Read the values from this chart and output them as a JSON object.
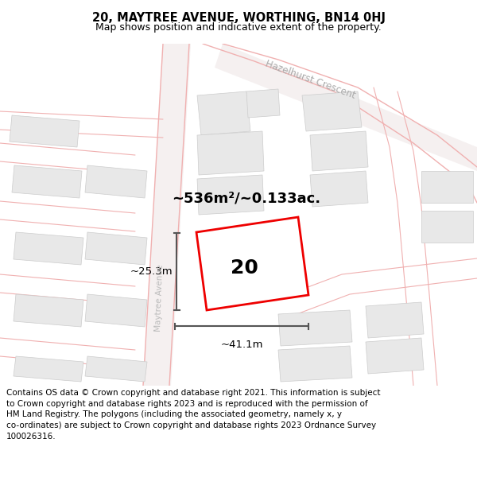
{
  "title": "20, MAYTREE AVENUE, WORTHING, BN14 0HJ",
  "subtitle": "Map shows position and indicative extent of the property.",
  "area_label": "~536m²/~0.133ac.",
  "number_label": "20",
  "dim_h": "~41.1m",
  "dim_v": "~25.3m",
  "road_label_diagonal": "Hazelhurst Crescent",
  "road_label_vertical": "Avenue",
  "footer": "Contains OS data © Crown copyright and database right 2021. This information is subject\nto Crown copyright and database rights 2023 and is reproduced with the permission of\nHM Land Registry. The polygons (including the associated geometry, namely x, y\nco-ordinates) are subject to Crown copyright and database rights 2023 Ordnance Survey\n100026316.",
  "map_bg": "#f8f8f8",
  "title_bg": "#ffffff",
  "footer_bg": "#ffffff",
  "building_fill": "#e8e8e8",
  "building_edge": "#cccccc",
  "road_line_color": "#f0b0b0",
  "road_area_color": "#f5e8e8",
  "property_color": "#ee0000",
  "property_fill": "#ffffff",
  "dim_color": "#555555",
  "text_color": "#000000",
  "road_text_color": "#bbbbbb",
  "haz_text_color": "#aaaaaa"
}
